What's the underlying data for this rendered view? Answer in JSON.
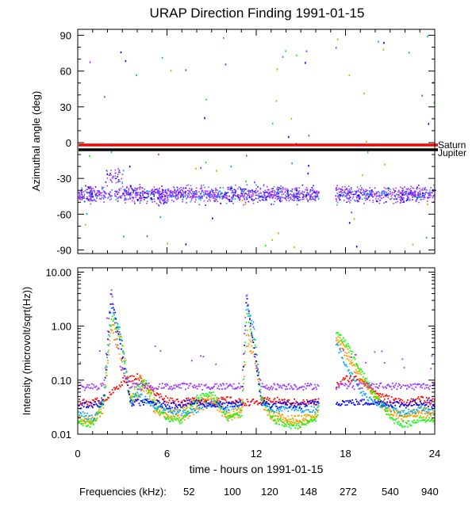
{
  "title": "URAP Direction Finding  1991-01-15",
  "chart_data": [
    {
      "type": "scatter",
      "panel": "top",
      "ylabel": "Azimuthal angle (deg)",
      "xlim": [
        0,
        24
      ],
      "ylim": [
        -93,
        95
      ],
      "yticks": [
        90,
        60,
        30,
        0,
        -30,
        -60,
        -90
      ],
      "ytick_labels": [
        "90",
        "60",
        "30",
        "0",
        "-30",
        "-60",
        "-90"
      ],
      "reference_lines": [
        {
          "name": "Saturn",
          "y": -2,
          "color": "#ff0000"
        },
        {
          "name": "Jupiter",
          "y": -6,
          "color": "#000000"
        }
      ],
      "series_summary": {
        "cluster_center_deg": -43,
        "cluster_spread_deg": 5,
        "data_gap_hours": [
          16.2,
          17.3
        ],
        "excursion": {
          "hours": [
            1.8,
            3.0
          ],
          "angle_deg": -28
        }
      }
    },
    {
      "type": "scatter",
      "panel": "bottom",
      "ylabel": "Intensity (microvolt/sqrt(Hz))",
      "yscale": "log",
      "ylim": [
        0.01,
        12
      ],
      "yticks": [
        10,
        1,
        0.1,
        0.01
      ],
      "ytick_labels": [
        "10.00",
        "1.00",
        "0.10",
        "0.01"
      ],
      "xlabel": "time - hours on 1991-01-15",
      "xlim": [
        0,
        24
      ],
      "xticks": [
        0,
        6,
        12,
        18,
        24
      ],
      "xtick_labels": [
        "0",
        "6",
        "12",
        "18",
        "24"
      ],
      "series": [
        {
          "name": "52",
          "color": "#ff0000",
          "points": [
            [
              0,
              0.04
            ],
            [
              1,
              0.04
            ],
            [
              2,
              0.05
            ],
            [
              3,
              0.1
            ],
            [
              4,
              0.12
            ],
            [
              5,
              0.06
            ],
            [
              6,
              0.045
            ],
            [
              7,
              0.04
            ],
            [
              8,
              0.045
            ],
            [
              9,
              0.04
            ],
            [
              10,
              0.045
            ],
            [
              11,
              0.04
            ],
            [
              12,
              0.04
            ],
            [
              13,
              0.045
            ],
            [
              14,
              0.04
            ],
            [
              15,
              0.04
            ],
            [
              16,
              0.04
            ],
            [
              17.3,
              0.08
            ],
            [
              18,
              0.11
            ],
            [
              19,
              0.11
            ],
            [
              20,
              0.06
            ],
            [
              21,
              0.045
            ],
            [
              22,
              0.04
            ],
            [
              23,
              0.045
            ],
            [
              24,
              0.04
            ]
          ]
        },
        {
          "name": "100",
          "color": "#ff9900",
          "points": [
            [
              0,
              0.018
            ],
            [
              1,
              0.018
            ],
            [
              1.7,
              0.03
            ],
            [
              2.2,
              0.9
            ],
            [
              2.8,
              0.3
            ],
            [
              3.5,
              0.04
            ],
            [
              4,
              0.05
            ],
            [
              4.5,
              0.08
            ],
            [
              5,
              0.03
            ],
            [
              6,
              0.022
            ],
            [
              7,
              0.02
            ],
            [
              8,
              0.03
            ],
            [
              9,
              0.04
            ],
            [
              10,
              0.02
            ],
            [
              11,
              0.025
            ],
            [
              11.3,
              0.5
            ],
            [
              11.8,
              0.3
            ],
            [
              12.3,
              0.04
            ],
            [
              13,
              0.02
            ],
            [
              14,
              0.018
            ],
            [
              15,
              0.017
            ],
            [
              16,
              0.02
            ],
            [
              17.3,
              0.6
            ],
            [
              18,
              0.3
            ],
            [
              19,
              0.1
            ],
            [
              20,
              0.05
            ],
            [
              21,
              0.025
            ],
            [
              22,
              0.02
            ],
            [
              23,
              0.025
            ],
            [
              24,
              0.02
            ]
          ]
        },
        {
          "name": "120",
          "color": "#ddaa00",
          "points": [
            [
              0,
              0.02
            ],
            [
              1,
              0.02
            ],
            [
              1.7,
              0.04
            ],
            [
              2.2,
              1.2
            ],
            [
              3,
              0.5
            ],
            [
              3.5,
              0.05
            ],
            [
              4.2,
              0.12
            ],
            [
              4.8,
              0.06
            ],
            [
              5.5,
              0.03
            ],
            [
              6,
              0.025
            ],
            [
              7,
              0.03
            ],
            [
              8,
              0.04
            ],
            [
              9,
              0.05
            ],
            [
              10,
              0.025
            ],
            [
              11,
              0.03
            ],
            [
              11.3,
              0.8
            ],
            [
              11.8,
              0.4
            ],
            [
              12.3,
              0.05
            ],
            [
              13,
              0.025
            ],
            [
              14,
              0.02
            ],
            [
              15,
              0.02
            ],
            [
              16,
              0.025
            ],
            [
              17.3,
              0.7
            ],
            [
              18,
              0.4
            ],
            [
              19,
              0.12
            ],
            [
              20,
              0.05
            ],
            [
              21,
              0.03
            ],
            [
              22,
              0.022
            ],
            [
              23,
              0.03
            ],
            [
              24,
              0.025
            ]
          ]
        },
        {
          "name": "148",
          "color": "#00ff00",
          "points": [
            [
              0,
              0.016
            ],
            [
              1,
              0.016
            ],
            [
              1.7,
              0.04
            ],
            [
              2.2,
              1.5
            ],
            [
              2.8,
              0.8
            ],
            [
              3.5,
              0.04
            ],
            [
              4,
              0.08
            ],
            [
              4.5,
              0.1
            ],
            [
              5,
              0.04
            ],
            [
              6,
              0.02
            ],
            [
              7,
              0.018
            ],
            [
              8,
              0.05
            ],
            [
              9,
              0.06
            ],
            [
              10,
              0.02
            ],
            [
              11,
              0.025
            ],
            [
              11.3,
              1.8
            ],
            [
              11.8,
              0.6
            ],
            [
              12.3,
              0.05
            ],
            [
              13,
              0.02
            ],
            [
              14,
              0.015
            ],
            [
              15,
              0.015
            ],
            [
              16,
              0.02
            ],
            [
              17.3,
              0.8
            ],
            [
              18,
              0.5
            ],
            [
              19,
              0.15
            ],
            [
              20,
              0.05
            ],
            [
              21,
              0.02
            ],
            [
              22,
              0.015
            ],
            [
              23,
              0.02
            ],
            [
              24,
              0.018
            ]
          ]
        },
        {
          "name": "272",
          "color": "#00aaff",
          "points": [
            [
              0,
              0.025
            ],
            [
              1,
              0.02
            ],
            [
              1.7,
              0.05
            ],
            [
              2.2,
              2.5
            ],
            [
              2.8,
              0.9
            ],
            [
              3.5,
              0.04
            ],
            [
              4,
              0.06
            ],
            [
              5,
              0.035
            ],
            [
              6,
              0.03
            ],
            [
              7,
              0.025
            ],
            [
              8,
              0.03
            ],
            [
              9,
              0.04
            ],
            [
              10,
              0.03
            ],
            [
              11,
              0.04
            ],
            [
              11.3,
              2.5
            ],
            [
              11.8,
              1.0
            ],
            [
              12.3,
              0.04
            ],
            [
              13,
              0.03
            ],
            [
              14,
              0.03
            ],
            [
              15,
              0.03
            ],
            [
              16,
              0.03
            ],
            [
              17.3,
              0.5
            ],
            [
              18,
              0.2
            ],
            [
              19,
              0.06
            ],
            [
              20,
              0.04
            ],
            [
              21,
              0.03
            ],
            [
              22,
              0.025
            ],
            [
              23,
              0.03
            ],
            [
              24,
              0.025
            ]
          ]
        },
        {
          "name": "540",
          "color": "#0000ff",
          "points": [
            [
              0,
              0.035
            ],
            [
              1,
              0.035
            ],
            [
              1.7,
              0.04
            ],
            [
              2.2,
              4.0
            ],
            [
              2.8,
              0.5
            ],
            [
              3.5,
              0.038
            ],
            [
              4,
              0.04
            ],
            [
              5,
              0.04
            ],
            [
              6,
              0.035
            ],
            [
              7,
              0.037
            ],
            [
              8,
              0.04
            ],
            [
              9,
              0.036
            ],
            [
              10,
              0.035
            ],
            [
              11,
              0.038
            ],
            [
              11.3,
              4.0
            ],
            [
              11.8,
              0.4
            ],
            [
              12.3,
              0.04
            ],
            [
              13,
              0.035
            ],
            [
              14,
              0.036
            ],
            [
              15,
              0.035
            ],
            [
              16,
              0.04
            ],
            [
              17.3,
              0.04
            ],
            [
              18,
              0.04
            ],
            [
              19,
              0.04
            ],
            [
              20,
              0.04
            ],
            [
              21,
              0.038
            ],
            [
              22,
              0.036
            ],
            [
              23,
              0.04
            ],
            [
              24,
              0.037
            ]
          ]
        },
        {
          "name": "940",
          "color": "#9933ff",
          "points": [
            [
              0,
              0.075
            ],
            [
              1,
              0.078
            ],
            [
              1.7,
              0.08
            ],
            [
              2.2,
              5.0
            ],
            [
              2.8,
              0.2
            ],
            [
              3.5,
              0.08
            ],
            [
              4,
              0.078
            ],
            [
              5,
              0.08
            ],
            [
              6,
              0.078
            ],
            [
              7,
              0.08
            ],
            [
              8,
              0.079
            ],
            [
              9,
              0.078
            ],
            [
              10,
              0.08
            ],
            [
              11,
              0.08
            ],
            [
              11.3,
              5.0
            ],
            [
              11.8,
              0.3
            ],
            [
              12.3,
              0.08
            ],
            [
              13,
              0.078
            ],
            [
              14,
              0.08
            ],
            [
              15,
              0.078
            ],
            [
              16,
              0.08
            ],
            [
              17.3,
              0.08
            ],
            [
              18,
              0.08
            ],
            [
              19,
              0.08
            ],
            [
              20,
              0.08
            ],
            [
              21,
              0.08
            ],
            [
              22,
              0.078
            ],
            [
              23,
              0.08
            ],
            [
              24,
              0.08
            ]
          ]
        }
      ]
    }
  ],
  "legend": {
    "label": "Frequencies (kHz):",
    "items": [
      {
        "text": "52",
        "color": "#ff0000"
      },
      {
        "text": "100",
        "color": "#ff9900"
      },
      {
        "text": "120",
        "color": "#ddaa00"
      },
      {
        "text": "148",
        "color": "#00ff00"
      },
      {
        "text": "272",
        "color": "#00aaff"
      },
      {
        "text": "540",
        "color": "#0000ff"
      },
      {
        "text": "940",
        "color": "#9933ff"
      }
    ]
  }
}
